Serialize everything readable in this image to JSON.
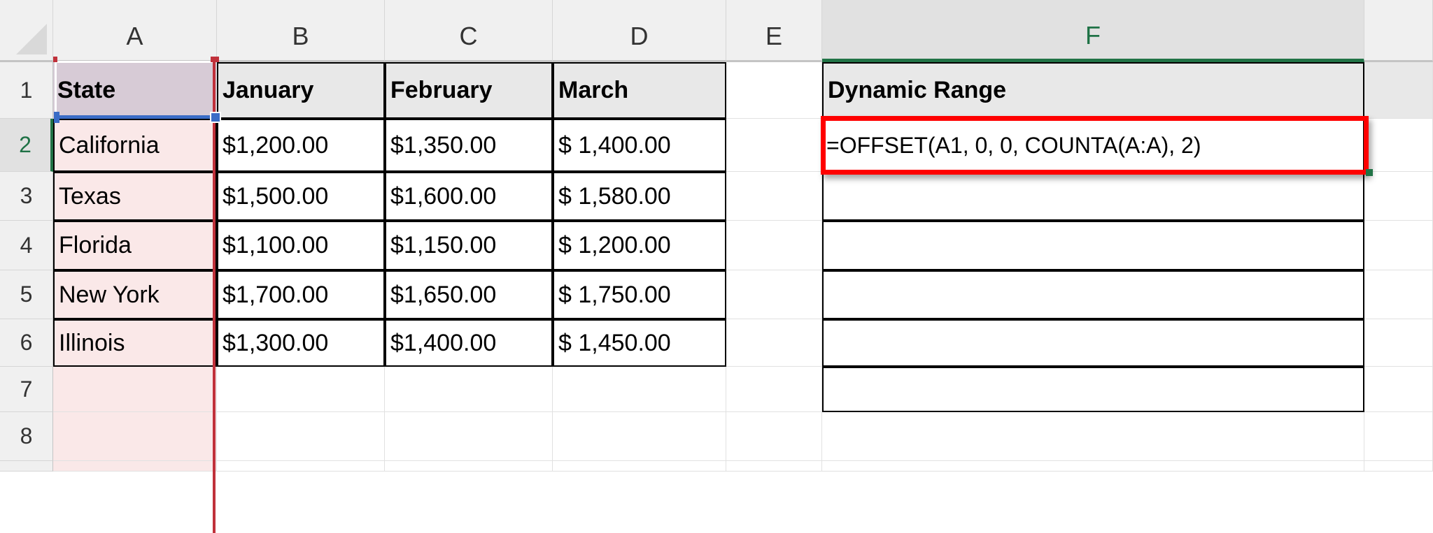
{
  "columns": [
    "A",
    "B",
    "C",
    "D",
    "E",
    "F"
  ],
  "rows": [
    "1",
    "2",
    "3",
    "4",
    "5",
    "6",
    "7",
    "8"
  ],
  "table": {
    "headers": [
      "State",
      "January",
      "February",
      "March"
    ],
    "data": [
      [
        "California",
        "$1,200.00",
        "$1,350.00",
        "$ 1,400.00"
      ],
      [
        "Texas",
        "$1,500.00",
        "$1,600.00",
        "$ 1,580.00"
      ],
      [
        "Florida",
        "$1,100.00",
        "$1,150.00",
        "$ 1,200.00"
      ],
      [
        "New York",
        "$1,700.00",
        "$1,650.00",
        "$ 1,750.00"
      ],
      [
        "Illinois",
        "$1,300.00",
        "$1,400.00",
        "$ 1,450.00"
      ]
    ]
  },
  "dynamic": {
    "header": "Dynamic Range",
    "formula": "=OFFSET(A1, 0, 0, COUNTA(A:A), 2)"
  },
  "colors": {
    "accent_green": "#217346",
    "highlight_red": "#ff0000",
    "range_red": "#c0313b",
    "range_blue": "#3a6cc6"
  }
}
